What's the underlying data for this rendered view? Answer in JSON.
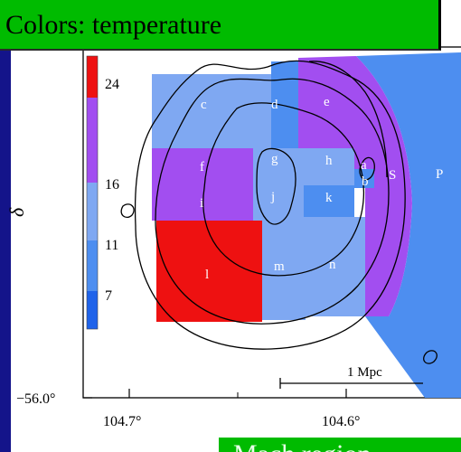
{
  "banner_top": "Colors: temperature",
  "banner_bottom": "Mach region",
  "colors": {
    "background": "#14148a",
    "banner": "#00bb00",
    "hot": "#ee1111",
    "warm": "#a24ef0",
    "mid": "#7fa8f2",
    "cool": "#4d8ef0",
    "cold": "#1f63ea"
  },
  "chart_data": {
    "type": "heatmap",
    "title": "",
    "xlabel": "",
    "ylabel": "δ",
    "x_ticks": [
      "104.7°",
      "104.6°"
    ],
    "y_ticks": [
      "−56.0°"
    ],
    "colorbar": {
      "label_values": [
        "24",
        "16",
        "11",
        "7"
      ],
      "levels": [
        {
          "min": 24,
          "color": "#ee1111"
        },
        {
          "min": 16,
          "max": 24,
          "color": "#a24ef0"
        },
        {
          "min": 11,
          "max": 16,
          "color": "#7fa8f2"
        },
        {
          "min": 7,
          "max": 11,
          "color": "#4d8ef0"
        },
        {
          "max": 7,
          "color": "#1f63ea"
        }
      ]
    },
    "regions": [
      {
        "label": "c",
        "level": 11
      },
      {
        "label": "d",
        "level": 7
      },
      {
        "label": "e",
        "level": 16
      },
      {
        "label": "f",
        "level": 16
      },
      {
        "label": "g",
        "level": 11
      },
      {
        "label": "h",
        "level": 11
      },
      {
        "label": "a",
        "level": 16
      },
      {
        "label": "b",
        "level": 7
      },
      {
        "label": "i",
        "level": 16
      },
      {
        "label": "j",
        "level": 11
      },
      {
        "label": "k",
        "level": 7
      },
      {
        "label": "l",
        "level": 24
      },
      {
        "label": "m",
        "level": 11
      },
      {
        "label": "n",
        "level": 11
      },
      {
        "label": "S",
        "level": 16
      },
      {
        "label": "P",
        "level": 7
      }
    ],
    "scale_bar": "1 Mpc",
    "overlay": "contours"
  }
}
